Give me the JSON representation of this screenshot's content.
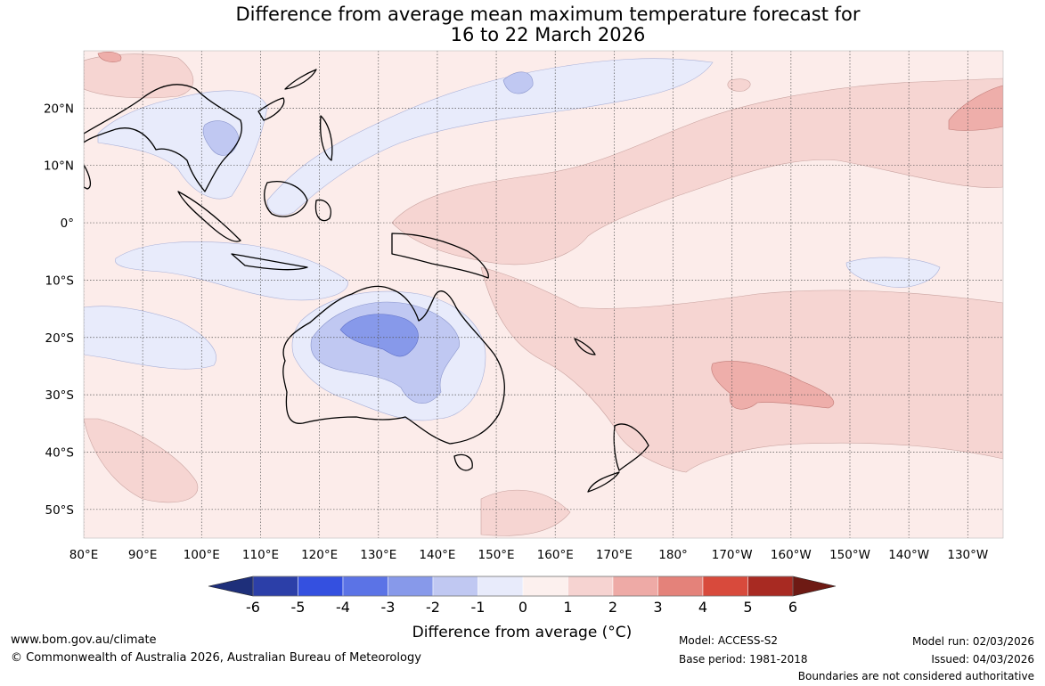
{
  "title": {
    "line1": "Difference from average mean maximum temperature forecast for",
    "line2": "16 to 22 March 2026"
  },
  "map": {
    "lon_labels": [
      "80°E",
      "90°E",
      "100°E",
      "110°E",
      "120°E",
      "130°E",
      "140°E",
      "150°E",
      "160°E",
      "170°E",
      "180°",
      "170°W",
      "160°W",
      "150°W",
      "140°W",
      "130°W"
    ],
    "lat_labels": [
      "20°N",
      "10°N",
      "0°",
      "10°S",
      "20°S",
      "30°S",
      "40°S",
      "50°S"
    ],
    "lon_range": [
      80,
      236
    ],
    "lat_range": [
      -55,
      30
    ]
  },
  "colorbar": {
    "ticks": [
      "-6",
      "-5",
      "-4",
      "-3",
      "-2",
      "-1",
      "0",
      "1",
      "2",
      "3",
      "4",
      "5",
      "6"
    ],
    "colors": [
      "#2c3fa8",
      "#3450e0",
      "#5b73e6",
      "#8799ea",
      "#c0c8f2",
      "#e8ebfb",
      "#fcf0ee",
      "#f6d3d1",
      "#eeaaa6",
      "#e4827a",
      "#d84a3c",
      "#a82a22"
    ],
    "under_color": "#1e2f7a",
    "over_color": "#6e1a14",
    "title": "Difference from average (°C)"
  },
  "chart_data": {
    "type": "heatmap",
    "variable": "Difference from average mean maximum temperature",
    "units": "°C",
    "period": "16 to 22 March 2026",
    "levels": [
      -6,
      -5,
      -4,
      -3,
      -2,
      -1,
      0,
      1,
      2,
      3,
      4,
      5,
      6
    ],
    "anomaly_regions": [
      {
        "name": "Central and northern Australia",
        "anomaly_range": [
          -3,
          -1
        ]
      },
      {
        "name": "Inland Western Australia and Northern Territory core",
        "anomaly_range": [
          -3,
          -2
        ]
      },
      {
        "name": "Indian Ocean west of Indonesia",
        "anomaly_range": [
          -1,
          0
        ]
      },
      {
        "name": "Indochina",
        "anomaly_range": [
          -2,
          -1
        ]
      },
      {
        "name": "South Pacific Convergence band",
        "anomaly_range": [
          1,
          2
        ]
      },
      {
        "name": "South Pacific around 30°S 170°W",
        "anomaly_range": [
          2,
          3
        ]
      },
      {
        "name": "North Pacific near 20°N 130°W",
        "anomaly_range": [
          2,
          3
        ]
      },
      {
        "name": "Most of the ocean",
        "anomaly_range": [
          0,
          1
        ]
      }
    ]
  },
  "footer": {
    "website": "www.bom.gov.au/climate",
    "copyright": "© Commonwealth of Australia 2026, Australian Bureau of Meteorology",
    "model": "Model: ACCESS-S2",
    "base_period": "Base period: 1981-2018",
    "model_run": "Model run: 02/03/2026",
    "issued": "Issued: 04/03/2026",
    "disclaimer": "Boundaries are not considered authoritative"
  }
}
